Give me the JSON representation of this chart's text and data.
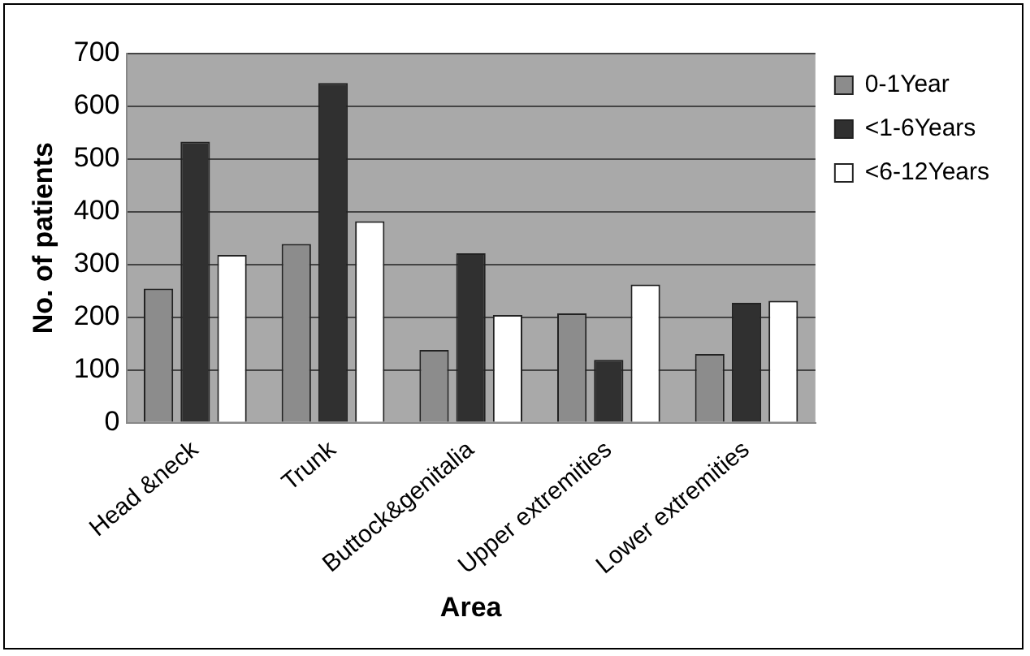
{
  "chart_data": {
    "type": "bar",
    "xlabel": "Area",
    "ylabel": "No. of patients",
    "categories": [
      "Head &neck",
      "Trunk",
      "Buttock&genitalia",
      "Upper extremities",
      "Lower extremities"
    ],
    "series": [
      {
        "name": "0-1Year",
        "color": "#8c8c8c",
        "values": [
          254,
          339,
          138,
          207,
          130
        ]
      },
      {
        "name": "<1-6Years",
        "color": "#303030",
        "values": [
          533,
          644,
          321,
          119,
          227
        ]
      },
      {
        "name": "<6-12Years",
        "color": "#ffffff",
        "values": [
          318,
          382,
          204,
          262,
          231
        ]
      }
    ],
    "ylim": [
      0,
      700
    ],
    "yticks": [
      0,
      100,
      200,
      300,
      400,
      500,
      600,
      700
    ],
    "grid": "y",
    "legend": "right"
  }
}
